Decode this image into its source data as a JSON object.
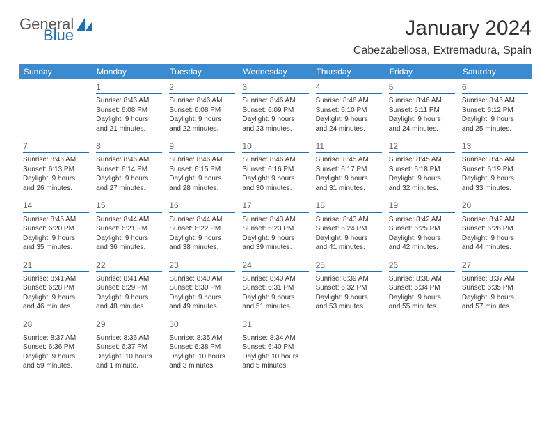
{
  "brand": {
    "part1": "General",
    "part2": "Blue"
  },
  "title": "January 2024",
  "location": "Cabezabellosa, Extremadura, Spain",
  "colors": {
    "header_bg": "#3b8bd0",
    "header_text": "#ffffff",
    "rule": "#1f6fb2",
    "text": "#333333",
    "daynum": "#666666"
  },
  "day_headers": [
    "Sunday",
    "Monday",
    "Tuesday",
    "Wednesday",
    "Thursday",
    "Friday",
    "Saturday"
  ],
  "weeks": [
    [
      {
        "empty": true
      },
      {
        "n": "1",
        "sr": "Sunrise: 8:46 AM",
        "ss": "Sunset: 6:08 PM",
        "d1": "Daylight: 9 hours",
        "d2": "and 21 minutes."
      },
      {
        "n": "2",
        "sr": "Sunrise: 8:46 AM",
        "ss": "Sunset: 6:08 PM",
        "d1": "Daylight: 9 hours",
        "d2": "and 22 minutes."
      },
      {
        "n": "3",
        "sr": "Sunrise: 8:46 AM",
        "ss": "Sunset: 6:09 PM",
        "d1": "Daylight: 9 hours",
        "d2": "and 23 minutes."
      },
      {
        "n": "4",
        "sr": "Sunrise: 8:46 AM",
        "ss": "Sunset: 6:10 PM",
        "d1": "Daylight: 9 hours",
        "d2": "and 24 minutes."
      },
      {
        "n": "5",
        "sr": "Sunrise: 8:46 AM",
        "ss": "Sunset: 6:11 PM",
        "d1": "Daylight: 9 hours",
        "d2": "and 24 minutes."
      },
      {
        "n": "6",
        "sr": "Sunrise: 8:46 AM",
        "ss": "Sunset: 6:12 PM",
        "d1": "Daylight: 9 hours",
        "d2": "and 25 minutes."
      }
    ],
    [
      {
        "n": "7",
        "sr": "Sunrise: 8:46 AM",
        "ss": "Sunset: 6:13 PM",
        "d1": "Daylight: 9 hours",
        "d2": "and 26 minutes."
      },
      {
        "n": "8",
        "sr": "Sunrise: 8:46 AM",
        "ss": "Sunset: 6:14 PM",
        "d1": "Daylight: 9 hours",
        "d2": "and 27 minutes."
      },
      {
        "n": "9",
        "sr": "Sunrise: 8:46 AM",
        "ss": "Sunset: 6:15 PM",
        "d1": "Daylight: 9 hours",
        "d2": "and 28 minutes."
      },
      {
        "n": "10",
        "sr": "Sunrise: 8:46 AM",
        "ss": "Sunset: 6:16 PM",
        "d1": "Daylight: 9 hours",
        "d2": "and 30 minutes."
      },
      {
        "n": "11",
        "sr": "Sunrise: 8:45 AM",
        "ss": "Sunset: 6:17 PM",
        "d1": "Daylight: 9 hours",
        "d2": "and 31 minutes."
      },
      {
        "n": "12",
        "sr": "Sunrise: 8:45 AM",
        "ss": "Sunset: 6:18 PM",
        "d1": "Daylight: 9 hours",
        "d2": "and 32 minutes."
      },
      {
        "n": "13",
        "sr": "Sunrise: 8:45 AM",
        "ss": "Sunset: 6:19 PM",
        "d1": "Daylight: 9 hours",
        "d2": "and 33 minutes."
      }
    ],
    [
      {
        "n": "14",
        "sr": "Sunrise: 8:45 AM",
        "ss": "Sunset: 6:20 PM",
        "d1": "Daylight: 9 hours",
        "d2": "and 35 minutes."
      },
      {
        "n": "15",
        "sr": "Sunrise: 8:44 AM",
        "ss": "Sunset: 6:21 PM",
        "d1": "Daylight: 9 hours",
        "d2": "and 36 minutes."
      },
      {
        "n": "16",
        "sr": "Sunrise: 8:44 AM",
        "ss": "Sunset: 6:22 PM",
        "d1": "Daylight: 9 hours",
        "d2": "and 38 minutes."
      },
      {
        "n": "17",
        "sr": "Sunrise: 8:43 AM",
        "ss": "Sunset: 6:23 PM",
        "d1": "Daylight: 9 hours",
        "d2": "and 39 minutes."
      },
      {
        "n": "18",
        "sr": "Sunrise: 8:43 AM",
        "ss": "Sunset: 6:24 PM",
        "d1": "Daylight: 9 hours",
        "d2": "and 41 minutes."
      },
      {
        "n": "19",
        "sr": "Sunrise: 8:42 AM",
        "ss": "Sunset: 6:25 PM",
        "d1": "Daylight: 9 hours",
        "d2": "and 42 minutes."
      },
      {
        "n": "20",
        "sr": "Sunrise: 8:42 AM",
        "ss": "Sunset: 6:26 PM",
        "d1": "Daylight: 9 hours",
        "d2": "and 44 minutes."
      }
    ],
    [
      {
        "n": "21",
        "sr": "Sunrise: 8:41 AM",
        "ss": "Sunset: 6:28 PM",
        "d1": "Daylight: 9 hours",
        "d2": "and 46 minutes."
      },
      {
        "n": "22",
        "sr": "Sunrise: 8:41 AM",
        "ss": "Sunset: 6:29 PM",
        "d1": "Daylight: 9 hours",
        "d2": "and 48 minutes."
      },
      {
        "n": "23",
        "sr": "Sunrise: 8:40 AM",
        "ss": "Sunset: 6:30 PM",
        "d1": "Daylight: 9 hours",
        "d2": "and 49 minutes."
      },
      {
        "n": "24",
        "sr": "Sunrise: 8:40 AM",
        "ss": "Sunset: 6:31 PM",
        "d1": "Daylight: 9 hours",
        "d2": "and 51 minutes."
      },
      {
        "n": "25",
        "sr": "Sunrise: 8:39 AM",
        "ss": "Sunset: 6:32 PM",
        "d1": "Daylight: 9 hours",
        "d2": "and 53 minutes."
      },
      {
        "n": "26",
        "sr": "Sunrise: 8:38 AM",
        "ss": "Sunset: 6:34 PM",
        "d1": "Daylight: 9 hours",
        "d2": "and 55 minutes."
      },
      {
        "n": "27",
        "sr": "Sunrise: 8:37 AM",
        "ss": "Sunset: 6:35 PM",
        "d1": "Daylight: 9 hours",
        "d2": "and 57 minutes."
      }
    ],
    [
      {
        "n": "28",
        "sr": "Sunrise: 8:37 AM",
        "ss": "Sunset: 6:36 PM",
        "d1": "Daylight: 9 hours",
        "d2": "and 59 minutes."
      },
      {
        "n": "29",
        "sr": "Sunrise: 8:36 AM",
        "ss": "Sunset: 6:37 PM",
        "d1": "Daylight: 10 hours",
        "d2": "and 1 minute."
      },
      {
        "n": "30",
        "sr": "Sunrise: 8:35 AM",
        "ss": "Sunset: 6:38 PM",
        "d1": "Daylight: 10 hours",
        "d2": "and 3 minutes."
      },
      {
        "n": "31",
        "sr": "Sunrise: 8:34 AM",
        "ss": "Sunset: 6:40 PM",
        "d1": "Daylight: 10 hours",
        "d2": "and 5 minutes."
      },
      {
        "empty": true
      },
      {
        "empty": true
      },
      {
        "empty": true
      }
    ]
  ]
}
